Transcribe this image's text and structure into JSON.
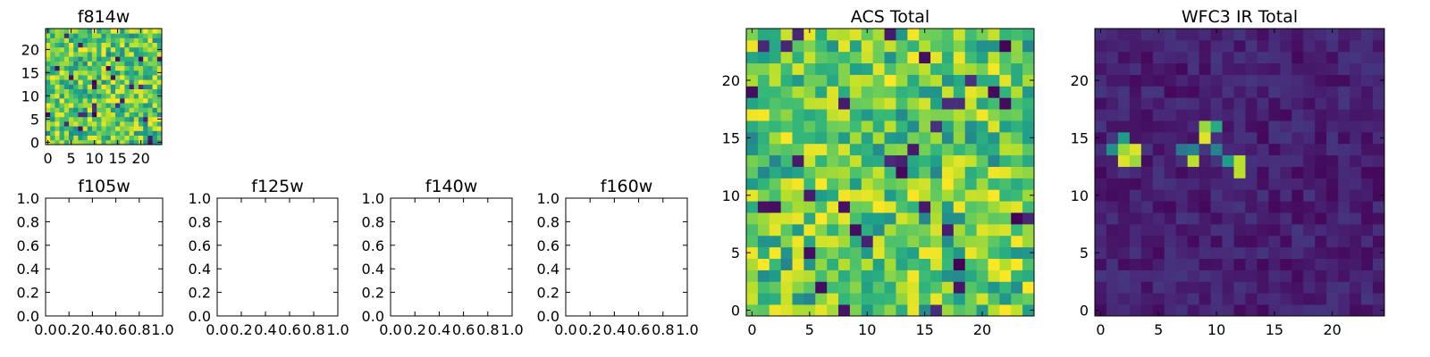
{
  "chart_data": [
    {
      "type": "heatmap",
      "title": "f814w",
      "grid_size": [
        25,
        25
      ],
      "colormap": "viridis",
      "xlim": [
        -0.5,
        24.5
      ],
      "ylim": [
        -0.5,
        24.5
      ],
      "xticks": [
        0,
        5,
        10,
        15,
        20
      ],
      "yticks": [
        0,
        5,
        10,
        15,
        20
      ],
      "xtick_labels": [
        "0",
        "5",
        "10",
        "15",
        "20"
      ],
      "ytick_labels": [
        "0",
        "5",
        "10",
        "15",
        "20"
      ],
      "values_desc": "uniform random noise, mostly green-yellow"
    },
    {
      "type": "empty",
      "title": "f105w",
      "xlim": [
        0,
        1
      ],
      "ylim": [
        0,
        1
      ],
      "xtick_labels": [
        "0.0",
        "0.2",
        "0.4",
        "0.6",
        "0.8",
        "1.0"
      ],
      "ytick_labels": [
        "0.0",
        "0.2",
        "0.4",
        "0.6",
        "0.8",
        "1.0"
      ]
    },
    {
      "type": "empty",
      "title": "f125w",
      "xlim": [
        0,
        1
      ],
      "ylim": [
        0,
        1
      ],
      "xtick_labels": [
        "0.0",
        "0.2",
        "0.4",
        "0.6",
        "0.8",
        "1.0"
      ],
      "ytick_labels": [
        "0.0",
        "0.2",
        "0.4",
        "0.6",
        "0.8",
        "1.0"
      ]
    },
    {
      "type": "empty",
      "title": "f140w",
      "xlim": [
        0,
        1
      ],
      "ylim": [
        0,
        1
      ],
      "xtick_labels": [
        "0.0",
        "0.2",
        "0.4",
        "0.6",
        "0.8",
        "1.0"
      ],
      "ytick_labels": [
        "0.0",
        "0.2",
        "0.4",
        "0.6",
        "0.8",
        "1.0"
      ]
    },
    {
      "type": "empty",
      "title": "f160w",
      "xlim": [
        0,
        1
      ],
      "ylim": [
        0,
        1
      ],
      "xtick_labels": [
        "0.0",
        "0.2",
        "0.4",
        "0.6",
        "0.8",
        "1.0"
      ],
      "ytick_labels": [
        "0.0",
        "0.2",
        "0.4",
        "0.6",
        "0.8",
        "1.0"
      ]
    },
    {
      "type": "heatmap",
      "title": "ACS Total",
      "grid_size": [
        25,
        25
      ],
      "colormap": "viridis",
      "xlim": [
        -0.5,
        24.5
      ],
      "ylim": [
        -0.5,
        24.5
      ],
      "xticks": [
        0,
        5,
        10,
        15,
        20
      ],
      "yticks": [
        0,
        5,
        10,
        15,
        20
      ],
      "xtick_labels": [
        "0",
        "5",
        "10",
        "15",
        "20"
      ],
      "ytick_labels": [
        "0",
        "5",
        "10",
        "15",
        "20"
      ],
      "values_desc": "uniform random noise, mostly green-yellow"
    },
    {
      "type": "heatmap",
      "title": "WFC3 IR Total",
      "grid_size": [
        25,
        25
      ],
      "colormap": "viridis",
      "xlim": [
        -0.5,
        24.5
      ],
      "ylim": [
        -0.5,
        24.5
      ],
      "xticks": [
        0,
        5,
        10,
        15,
        20
      ],
      "yticks": [
        0,
        5,
        10,
        15,
        20
      ],
      "xtick_labels": [
        "0",
        "5",
        "10",
        "15",
        "20"
      ],
      "ytick_labels": [
        "0",
        "5",
        "10",
        "15",
        "20"
      ],
      "values_desc": "low background with bright pixel clusters",
      "bright_pixels": [
        {
          "x": 2,
          "y": 14,
          "value": 0.85
        },
        {
          "x": 3,
          "y": 14,
          "value": 0.95
        },
        {
          "x": 2,
          "y": 13,
          "value": 0.95
        },
        {
          "x": 3,
          "y": 13,
          "value": 0.85
        },
        {
          "x": 2,
          "y": 15,
          "value": 0.55
        },
        {
          "x": 1,
          "y": 14,
          "value": 0.5
        },
        {
          "x": 8,
          "y": 13,
          "value": 0.9
        },
        {
          "x": 9,
          "y": 16,
          "value": 0.85
        },
        {
          "x": 9,
          "y": 15,
          "value": 0.95
        },
        {
          "x": 10,
          "y": 16,
          "value": 0.6
        },
        {
          "x": 12,
          "y": 13,
          "value": 0.9
        },
        {
          "x": 12,
          "y": 12,
          "value": 0.9
        },
        {
          "x": 11,
          "y": 13,
          "value": 0.55
        },
        {
          "x": 7,
          "y": 14,
          "value": 0.4
        },
        {
          "x": 8,
          "y": 14,
          "value": 0.45
        },
        {
          "x": 10,
          "y": 14,
          "value": 0.45
        }
      ]
    }
  ]
}
